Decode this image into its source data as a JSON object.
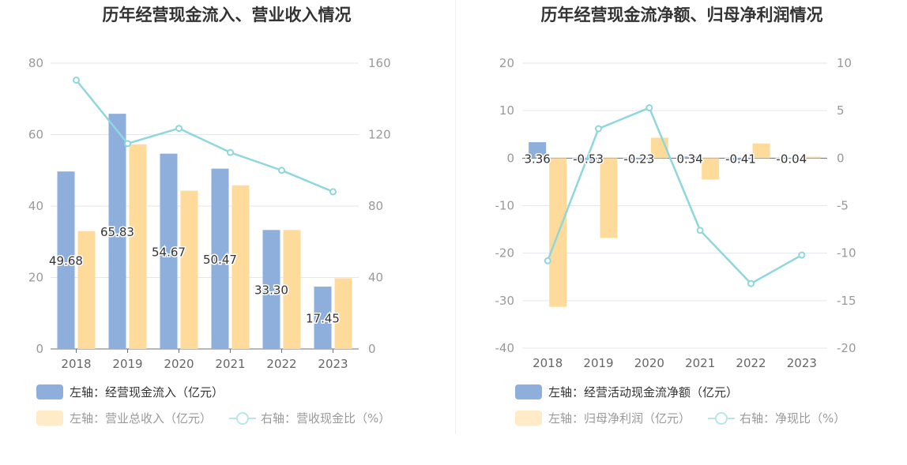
{
  "chart_data": [
    {
      "type": "bar",
      "title": "历年经营现金流入、营业收入情况",
      "categories": [
        "2018",
        "2019",
        "2020",
        "2021",
        "2022",
        "2023"
      ],
      "y_left": {
        "ticks": [
          "0",
          "20",
          "40",
          "60",
          "80"
        ],
        "min": 0,
        "max": 80
      },
      "y_right": {
        "ticks": [
          "0",
          "40",
          "80",
          "120",
          "160"
        ],
        "min": 0,
        "max": 160
      },
      "series": [
        {
          "name": "左轴：经营现金流入（亿元）",
          "type": "bar",
          "axis": "left",
          "color": "#8eaedb",
          "values": [
            49.68,
            65.83,
            54.67,
            50.47,
            33.3,
            17.45
          ],
          "labels": [
            "49.68",
            "65.83",
            "54.67",
            "50.47",
            "33.30",
            "17.45"
          ]
        },
        {
          "name": "左轴：营业总收入（亿元）",
          "type": "bar",
          "axis": "left",
          "color": "#ffdb9b",
          "values": [
            33.0,
            57.3,
            44.3,
            45.8,
            33.3,
            19.8
          ]
        },
        {
          "name": "右轴：营收现金比（%）",
          "type": "line",
          "axis": "right",
          "color": "#8ed7dc",
          "values": [
            150.5,
            115.0,
            123.5,
            110.0,
            100.0,
            88.0
          ]
        }
      ],
      "grid": true,
      "legend_position": "bottom-left"
    },
    {
      "type": "bar",
      "title": "历年经营现金流净额、归母净利润情况",
      "categories": [
        "2018",
        "2019",
        "2020",
        "2021",
        "2022",
        "2023"
      ],
      "y_left": {
        "ticks": [
          "20",
          "10",
          "0",
          "-10",
          "-20",
          "-30",
          "-40"
        ],
        "min": -40,
        "max": 20
      },
      "y_right": {
        "ticks": [
          "10",
          "5",
          "0",
          "-5",
          "-10",
          "-15",
          "-20"
        ],
        "min": -20,
        "max": 10
      },
      "series": [
        {
          "name": "左轴：经营活动现金流净额（亿元）",
          "type": "bar",
          "axis": "left",
          "color": "#8eaedb",
          "values": [
            3.36,
            -0.53,
            -0.23,
            0.34,
            -0.41,
            -0.04
          ],
          "labels": [
            "3.36",
            "-0.53",
            "-0.23",
            "0.34",
            "-0.41",
            "-0.04"
          ]
        },
        {
          "name": "左轴：归母净利润（亿元）",
          "type": "bar",
          "axis": "left",
          "color": "#ffdb9b",
          "values": [
            -31.3,
            -16.8,
            4.3,
            -4.5,
            3.1,
            0.3
          ]
        },
        {
          "name": "右轴：净现比（%）",
          "type": "line",
          "axis": "right",
          "color": "#8ed7dc",
          "values": [
            -10.8,
            3.1,
            5.3,
            -7.6,
            -13.2,
            -10.2
          ]
        }
      ],
      "grid": true,
      "legend_position": "bottom-left"
    }
  ]
}
